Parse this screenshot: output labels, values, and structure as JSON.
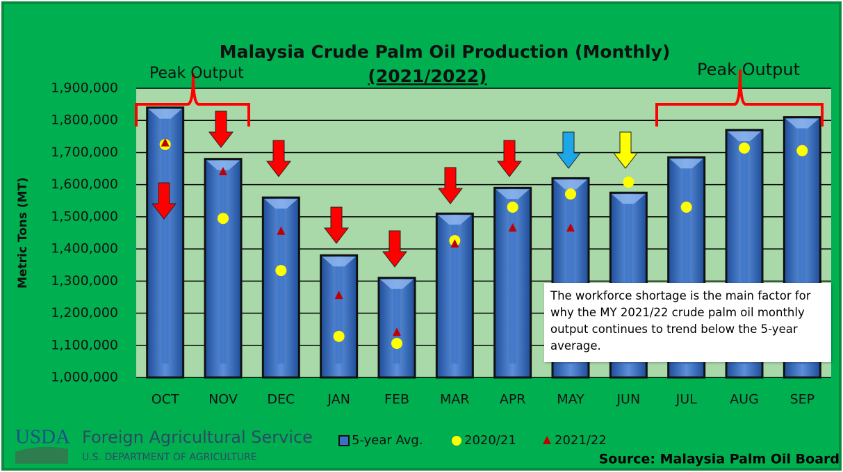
{
  "chart_data": {
    "type": "bar",
    "title": "Malaysia Crude Palm Oil Production (Monthly)",
    "subtitle": "(2021/2022)",
    "y_label": "Metric Tons (MT)",
    "categories": [
      "OCT",
      "NOV",
      "DEC",
      "JAN",
      "FEB",
      "MAR",
      "APR",
      "MAY",
      "JUN",
      "JUL",
      "AUG",
      "SEP"
    ],
    "series": [
      {
        "name": "5-year Avg.",
        "type": "bar",
        "color": "#3a6fc4",
        "values": [
          1840000,
          1680000,
          1560000,
          1380000,
          1310000,
          1510000,
          1590000,
          1620000,
          1575000,
          1685000,
          1770000,
          1810000
        ]
      },
      {
        "name": "2020/21",
        "type": "scatter",
        "marker": "circle",
        "color": "#ffff00",
        "values": [
          1725000,
          1495000,
          1333000,
          1128000,
          1106000,
          1426000,
          1530000,
          1571000,
          1608000,
          1530000,
          1714000,
          1706000
        ]
      },
      {
        "name": "2021/22",
        "type": "scatter",
        "marker": "triangle",
        "color": "#c00000",
        "values": [
          1730000,
          1640000,
          1455000,
          1255000,
          1140000,
          1415000,
          1465000,
          1465000,
          null,
          null,
          null,
          null
        ]
      }
    ],
    "ylim": [
      1000000,
      1900000
    ],
    "yticks": [
      {
        "value": 1000000,
        "label": "1,000,000"
      },
      {
        "value": 1100000,
        "label": "1,100,000"
      },
      {
        "value": 1200000,
        "label": "1,200,000"
      },
      {
        "value": 1300000,
        "label": "1,300,000"
      },
      {
        "value": 1400000,
        "label": "1,400,000"
      },
      {
        "value": 1500000,
        "label": "1,500,000"
      },
      {
        "value": 1600000,
        "label": "1,600,000"
      },
      {
        "value": 1700000,
        "label": "1,700,000"
      },
      {
        "value": 1800000,
        "label": "1,800,000"
      },
      {
        "value": 1900000,
        "label": "1,900,000"
      }
    ],
    "grid": true,
    "legend": "bottom",
    "annotations": [
      "Peak Output",
      "Peak Output",
      "The workforce shortage is the main factor for why the MY 2021/22 crude palm oil monthly output continues to trend below the 5-year average."
    ],
    "source": "Source: Malaysia Palm Oil Board"
  },
  "footer": {
    "logo": "USDA",
    "agency": "Foreign Agricultural Service",
    "department": "U.S. DEPARTMENT OF AGRICULTURE"
  }
}
